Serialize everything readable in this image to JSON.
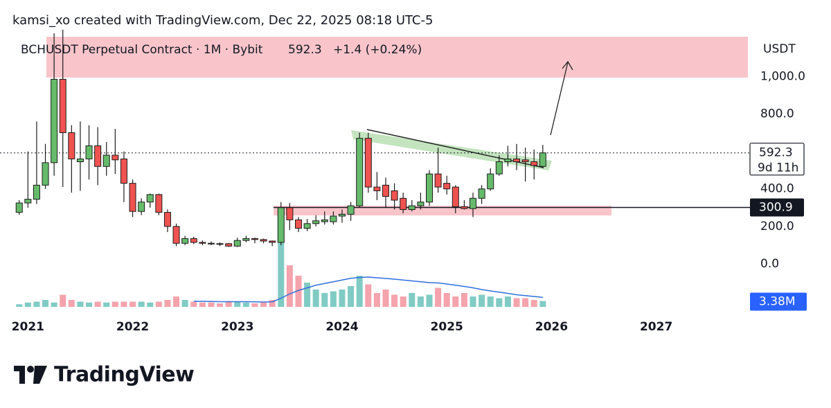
{
  "watermark": "kamsi_xo created with TradingView.com, Dec 22, 2025 08:18 UTC-5",
  "brand": "TradingView",
  "chart_data": {
    "type": "candlestick",
    "symbol": "BCHUSDT Perpetual Contract · 1M · Bybit",
    "change": "+1.4 (+0.24%)",
    "currency": "USDT",
    "countdown": "9d 11h",
    "level": 300.9,
    "up_color": "#66bb6a",
    "down_color": "#ef5350",
    "open": [
      275,
      325,
      345,
      420,
      540,
      985,
      700,
      545,
      560,
      630,
      520,
      580,
      560,
      430,
      280,
      330,
      370,
      275,
      200,
      110,
      135,
      115,
      110,
      108,
      108,
      95,
      125,
      135,
      130,
      122,
      115,
      300,
      235,
      190,
      215,
      225,
      225,
      255,
      265,
      310,
      670,
      410,
      420,
      390,
      350,
      290,
      310,
      330,
      480,
      430,
      410,
      305,
      295,
      350,
      400,
      480,
      545,
      560,
      555,
      545,
      520
    ],
    "high": [
      340,
      600,
      760,
      640,
      1230,
      1250,
      740,
      760,
      740,
      730,
      650,
      720,
      600,
      450,
      350,
      375,
      375,
      290,
      215,
      150,
      145,
      125,
      120,
      115,
      112,
      140,
      150,
      140,
      135,
      125,
      330,
      325,
      250,
      240,
      260,
      280,
      280,
      290,
      330,
      700,
      700,
      490,
      460,
      430,
      380,
      340,
      380,
      500,
      620,
      470,
      420,
      340,
      380,
      420,
      510,
      580,
      630,
      640,
      620,
      610,
      635
    ],
    "low": [
      262,
      300,
      320,
      400,
      470,
      410,
      380,
      390,
      450,
      420,
      470,
      480,
      330,
      250,
      260,
      300,
      260,
      170,
      95,
      100,
      105,
      100,
      100,
      95,
      90,
      90,
      115,
      110,
      110,
      95,
      100,
      180,
      170,
      175,
      200,
      210,
      210,
      220,
      230,
      300,
      380,
      340,
      300,
      290,
      270,
      280,
      290,
      310,
      380,
      370,
      270,
      290,
      250,
      320,
      390,
      470,
      520,
      500,
      440,
      450,
      510
    ],
    "close": [
      325,
      345,
      420,
      540,
      985,
      700,
      560,
      560,
      630,
      520,
      580,
      555,
      430,
      280,
      330,
      370,
      275,
      200,
      110,
      135,
      115,
      110,
      108,
      105,
      95,
      125,
      135,
      130,
      122,
      115,
      300,
      235,
      190,
      215,
      230,
      235,
      255,
      265,
      310,
      670,
      410,
      390,
      360,
      340,
      290,
      310,
      330,
      480,
      410,
      400,
      305,
      295,
      350,
      400,
      480,
      545,
      560,
      545,
      545,
      525,
      592.3
    ],
    "ylim": [
      -255,
      1260
    ],
    "yticks": [
      {
        "value": 0,
        "label": "0.0"
      },
      {
        "value": 200,
        "label": "200.0"
      },
      {
        "value": 400,
        "label": "400.0"
      },
      {
        "value": 800,
        "label": "800.0"
      },
      {
        "value": 1000,
        "label": "1,000.0"
      }
    ],
    "xlim": [
      -2.2,
      83.9
    ],
    "xticks": [
      {
        "value": 1,
        "label": "2021"
      },
      {
        "value": 13,
        "label": "2022"
      },
      {
        "value": 25,
        "label": "2023"
      },
      {
        "value": 37,
        "label": "2024"
      },
      {
        "value": 49,
        "label": "2025"
      },
      {
        "value": 61,
        "label": "2026"
      },
      {
        "value": 73,
        "label": "2027"
      }
    ],
    "volume": {
      "values": [
        1.5,
        2.5,
        3,
        4,
        2.5,
        7,
        4,
        3,
        2.5,
        3,
        2.5,
        3,
        3,
        3,
        3,
        2.5,
        3,
        4,
        6,
        4,
        3,
        2.5,
        2.5,
        2,
        3,
        3,
        2.5,
        2,
        2.5,
        4,
        39,
        24,
        18,
        14,
        10,
        8,
        9,
        10,
        12,
        18,
        13,
        8,
        10,
        7,
        6,
        8,
        6,
        7,
        11,
        8,
        6,
        8,
        6,
        7,
        6,
        5,
        6,
        5,
        5,
        4,
        3.38
      ],
      "up_color": "#80cbc4",
      "down_color": "#f5a3ac",
      "ma": [
        null,
        null,
        null,
        null,
        null,
        null,
        null,
        null,
        null,
        null,
        null,
        null,
        null,
        null,
        null,
        null,
        null,
        null,
        null,
        null,
        3.2,
        3.2,
        3.1,
        3.0,
        3.0,
        3.0,
        3.0,
        2.9,
        2.8,
        2.9,
        5,
        7.5,
        9.5,
        11,
        12.5,
        13.5,
        14.5,
        15.5,
        16.5,
        17,
        17.2,
        16.8,
        16.4,
        16,
        15.5,
        15,
        14.5,
        14,
        13.8,
        13.2,
        12.5,
        11.8,
        11,
        10,
        9.2,
        8.5,
        7.8,
        7,
        6.5,
        6,
        5.5
      ],
      "ma_color": "#2f6fde",
      "last_label": "3.38M",
      "ylim": [
        0,
        40
      ]
    }
  }
}
